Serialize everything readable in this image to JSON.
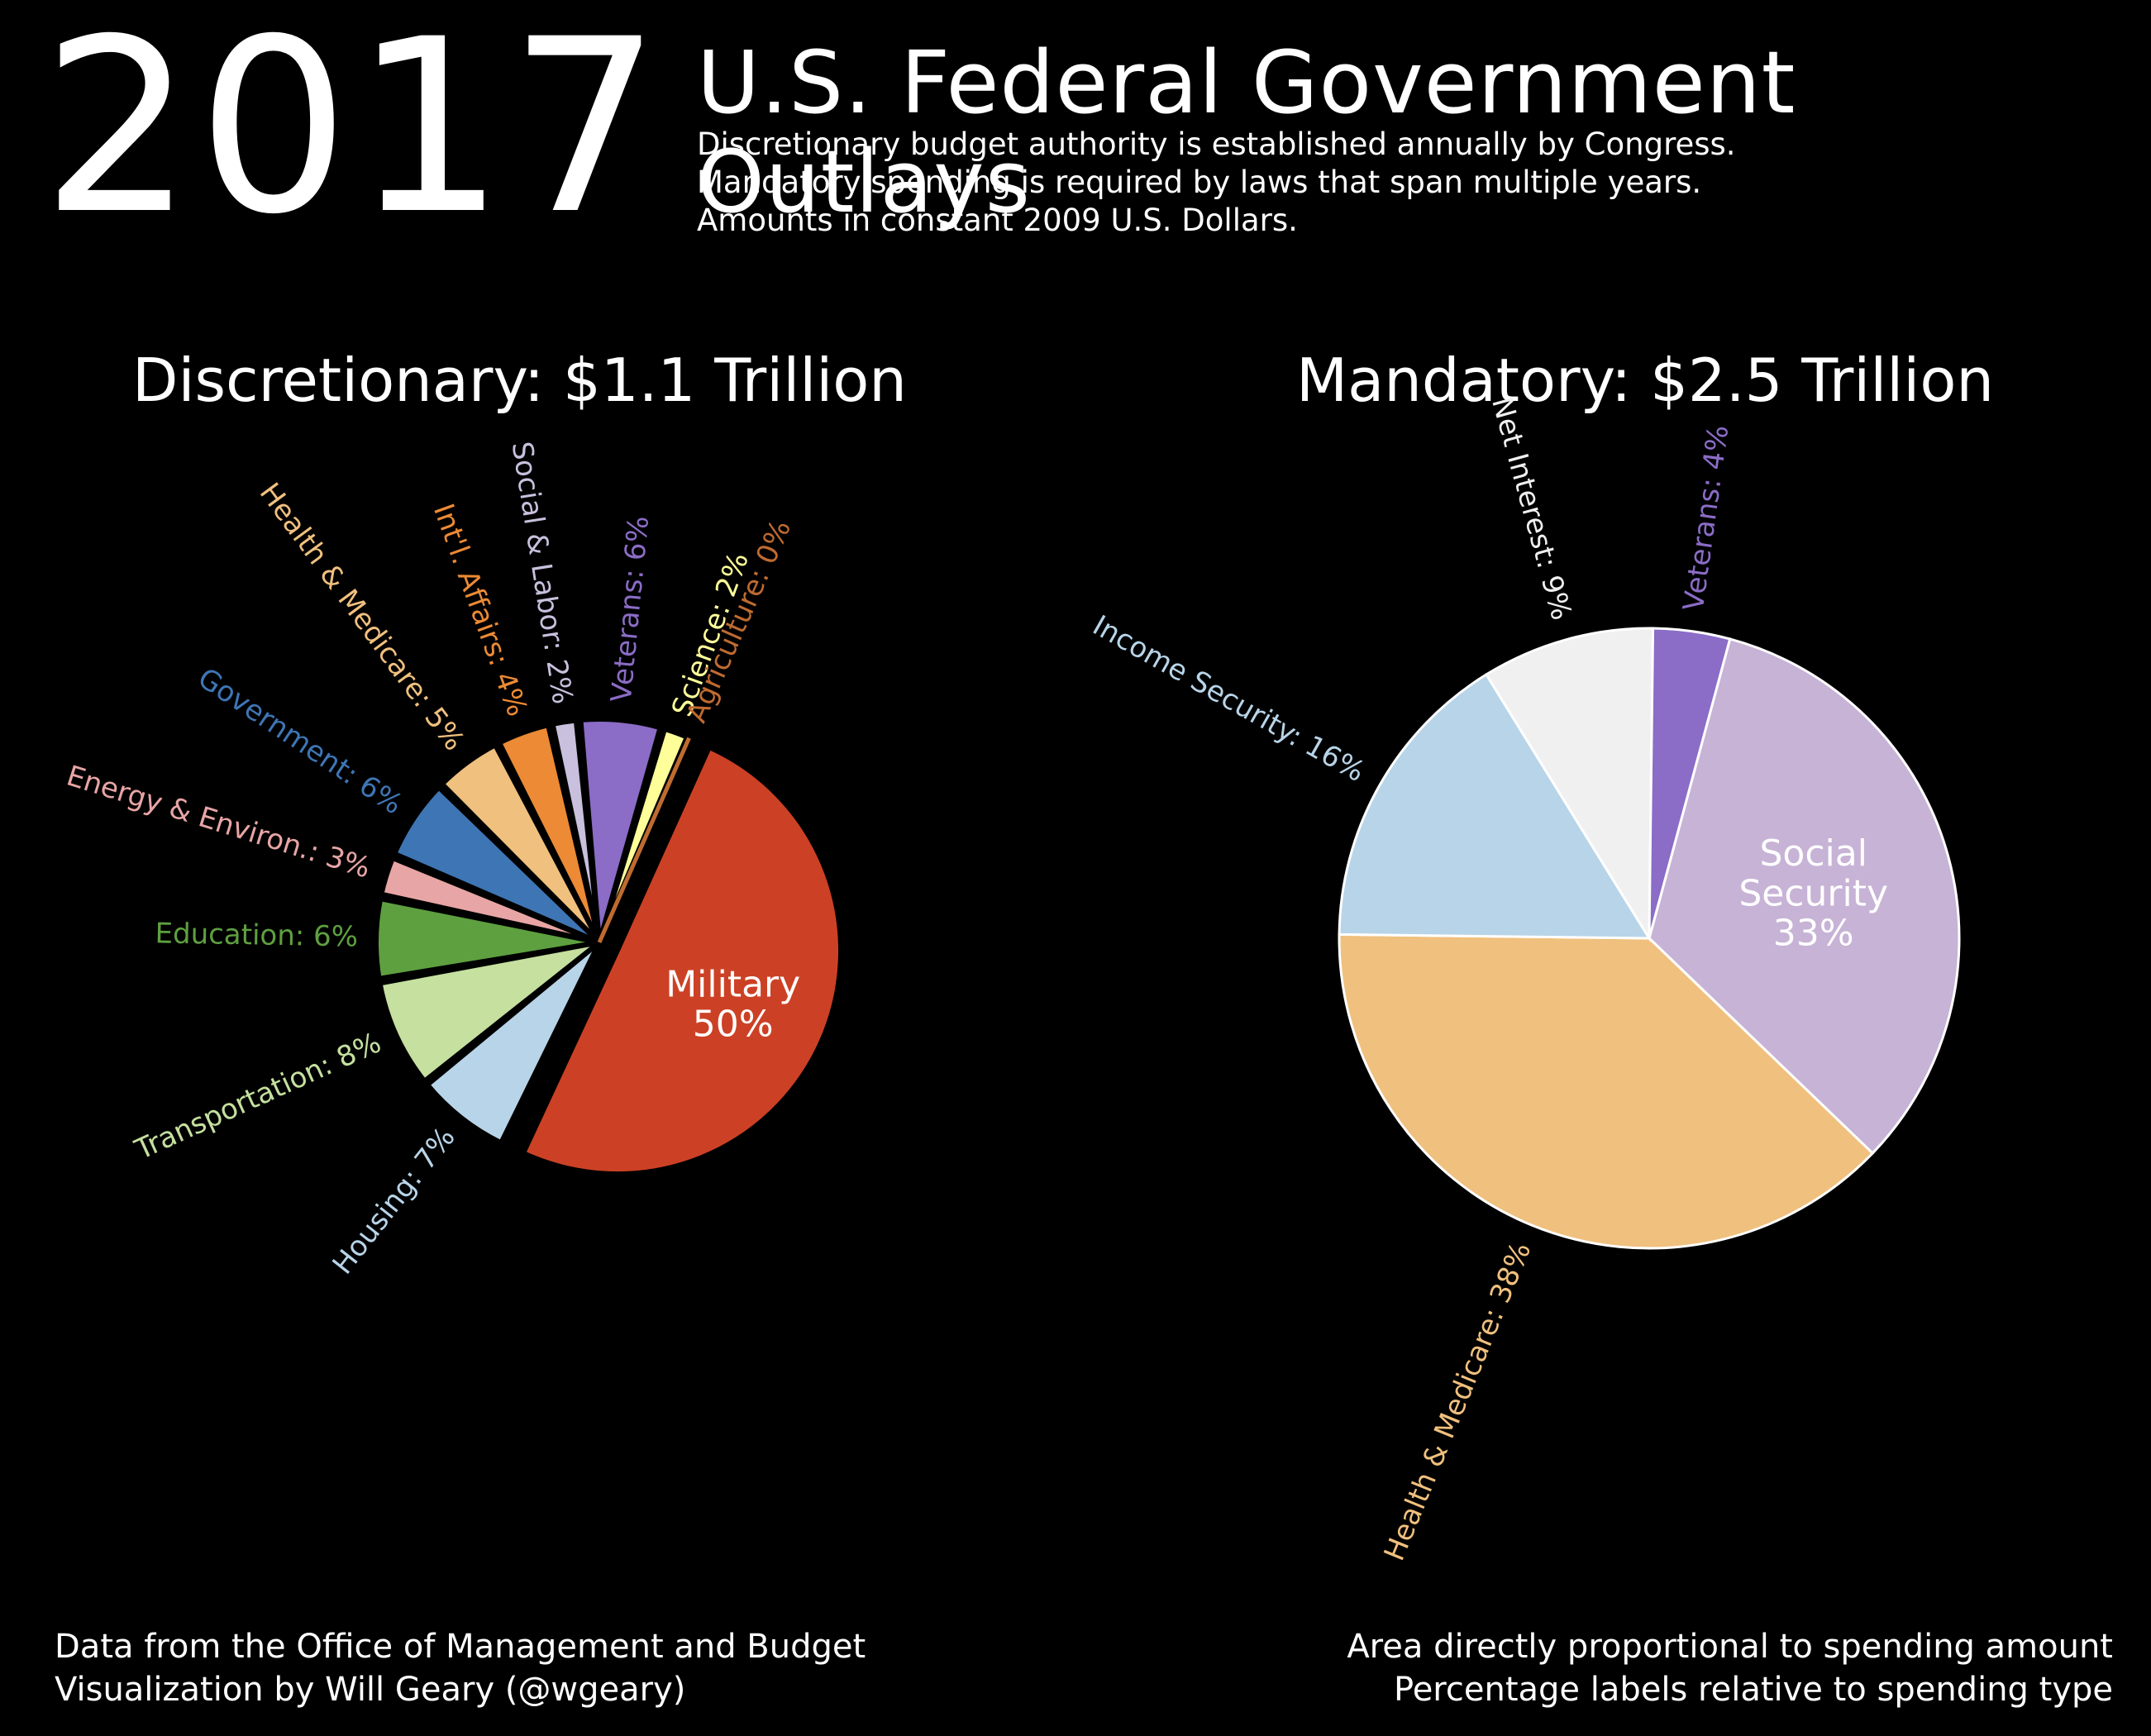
{
  "header": {
    "year": "2017",
    "title": "U.S. Federal Government Outlays",
    "subtitle_lines": [
      "Discretionary budget authority is established annually by Congress.",
      "Mandatory spending is required by laws that span multiple years.",
      "Amounts in constant 2009 U.S. Dollars."
    ]
  },
  "footer": {
    "left": [
      "Data from the Office of Management and Budget",
      "Visualization by Will Geary (@wgeary)"
    ],
    "right": [
      "Area directly proportional to spending amount",
      "Percentage labels relative to spending type"
    ]
  },
  "chart_data": [
    {
      "type": "pie",
      "title": "Discretionary: $1.1 Trillion",
      "center_label": [
        "Military",
        "50%"
      ],
      "slices": [
        {
          "label": "Military",
          "value": 50,
          "color": "#cc4125",
          "exploded": true
        },
        {
          "label": "Housing",
          "value": 7,
          "color": "#b8d4e8"
        },
        {
          "label": "Transportation",
          "value": 8,
          "color": "#c5e09f"
        },
        {
          "label": "Education",
          "value": 6,
          "color": "#5ea040"
        },
        {
          "label": "Energy & Environ.",
          "value": 3,
          "color": "#e8a5a5"
        },
        {
          "label": "Government",
          "value": 6,
          "color": "#3e76b5"
        },
        {
          "label": "Health & Medicare",
          "value": 5,
          "color": "#f0c07e"
        },
        {
          "label": "Int'l. Affairs",
          "value": 4,
          "color": "#ec8a35"
        },
        {
          "label": "Social & Labor",
          "value": 2,
          "color": "#c8c0dd"
        },
        {
          "label": "Veterans",
          "value": 6,
          "color": "#8b6cc6"
        },
        {
          "label": "Science",
          "value": 2,
          "color": "#ffff99"
        },
        {
          "label": "Agriculture",
          "value": 0,
          "color": "#bf6b30"
        }
      ],
      "slice_labels": [
        "Housing: 7%",
        "Transportation: 8%",
        "Education: 6%",
        "Energy & Environ.: 3%",
        "Government: 6%",
        "Health & Medicare: 5%",
        "Int'l. Affairs: 4%",
        "Social & Labor: 2%",
        "Veterans: 6%",
        "Science: 2%",
        "Agriculture: 0%"
      ]
    },
    {
      "type": "pie",
      "title": "Mandatory: $2.5 Trillion",
      "center_label": [
        "Social",
        "Security",
        "33%"
      ],
      "slices": [
        {
          "label": "Social Security",
          "value": 33,
          "color": "#c7b3d6"
        },
        {
          "label": "Health & Medicare",
          "value": 38,
          "color": "#f0c07e"
        },
        {
          "label": "Income Security",
          "value": 16,
          "color": "#b8d4e8"
        },
        {
          "label": "Net Interest",
          "value": 9,
          "color": "#f0f0f0"
        },
        {
          "label": "Veterans",
          "value": 4,
          "color": "#8b6cc6"
        }
      ],
      "slice_labels": [
        "Health & Medicare: 38%",
        "Income Security: 16%",
        "Net Interest: 9%",
        "Veterans: 4%"
      ]
    }
  ]
}
